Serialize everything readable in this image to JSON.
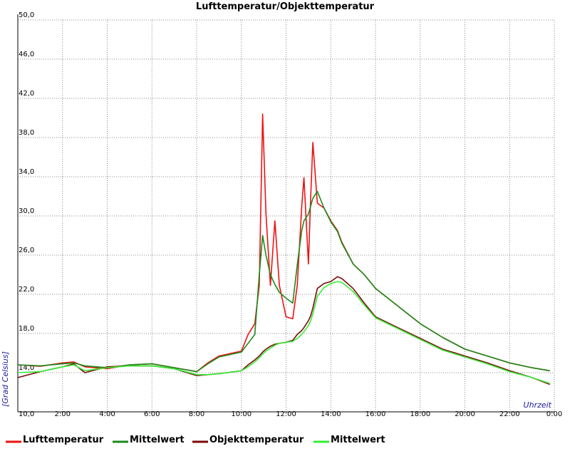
{
  "chart_data": {
    "type": "line",
    "title": "Lufttemperatur/Objekttemperatur",
    "y_label": "[Grad Celsius]",
    "x_label": "Uhrzeit",
    "x": [
      0,
      1,
      2,
      2.5,
      3,
      4,
      5,
      6,
      7,
      8,
      8.5,
      9,
      10,
      10.3,
      10.6,
      10.8,
      10.95,
      11.1,
      11.3,
      11.5,
      11.7,
      12,
      12.3,
      12.5,
      12.7,
      12.8,
      13,
      13.1,
      13.2,
      13.4,
      13.7,
      14,
      14.3,
      14.5,
      15,
      15.5,
      16,
      17,
      18,
      19,
      20,
      21,
      22,
      23,
      23.8
    ],
    "series": [
      {
        "name": "Lufttemperatur",
        "color": "#ee1111",
        "values": [
          14.8,
          14.65,
          15,
          15.1,
          14.6,
          14.4,
          14.8,
          14.9,
          14.5,
          14.1,
          15,
          15.7,
          16.2,
          17.9,
          19,
          22.9,
          40.4,
          30.2,
          22.9,
          29.5,
          22.9,
          19.7,
          19.5,
          22.9,
          31,
          33.9,
          25.1,
          31.8,
          37.5,
          31.3,
          30.8,
          29.5,
          28.5,
          27.3,
          25.1,
          24,
          22.6,
          20.8,
          19,
          17.6,
          16.4,
          15.7,
          15,
          14.5,
          14.2
        ]
      },
      {
        "name": "Mittelwert",
        "color": "#1a8a1a",
        "values": [
          14.8,
          14.7,
          14.9,
          15,
          14.7,
          14.5,
          14.8,
          14.9,
          14.5,
          14.1,
          14.9,
          15.6,
          16.1,
          17,
          17.9,
          24,
          28,
          26,
          24,
          23,
          22.2,
          21.6,
          21.1,
          25,
          28.5,
          29.5,
          30.2,
          31,
          31.8,
          32.5,
          30.8,
          29.4,
          28.4,
          27.2,
          25.1,
          24,
          22.6,
          20.8,
          19,
          17.6,
          16.4,
          15.7,
          15,
          14.5,
          14.2
        ]
      },
      {
        "name": "Objekttemperatur",
        "color": "#7a0a0a",
        "values": [
          13.5,
          14.1,
          14.6,
          14.9,
          14,
          14.6,
          14.7,
          14.7,
          14.4,
          13.7,
          13.8,
          13.9,
          14.2,
          14.8,
          15.3,
          15.7,
          16.1,
          16.4,
          16.7,
          16.9,
          17,
          17.1,
          17.3,
          17.9,
          18.3,
          18.6,
          19.3,
          19.8,
          20.6,
          22.6,
          23.1,
          23.3,
          23.8,
          23.6,
          22.6,
          21.1,
          19.7,
          18.6,
          17.5,
          16.4,
          15.7,
          15,
          14.2,
          13.5,
          12.8
        ]
      },
      {
        "name": "Mittelwert",
        "color": "#33ee33",
        "values": [
          14,
          14.1,
          14.6,
          14.8,
          14.2,
          14.5,
          14.7,
          14.7,
          14.4,
          13.8,
          13.8,
          13.9,
          14.2,
          14.6,
          15.1,
          15.5,
          15.9,
          16.2,
          16.5,
          16.8,
          17,
          17.1,
          17.2,
          17.5,
          17.9,
          18.2,
          18.8,
          19.3,
          20,
          21.8,
          22.7,
          23.1,
          23.3,
          23.2,
          22.3,
          20.9,
          19.6,
          18.5,
          17.4,
          16.3,
          15.6,
          14.9,
          14.1,
          13.5,
          12.9
        ]
      }
    ],
    "xlim": [
      0,
      24
    ],
    "xticks": [
      {
        "value": 2,
        "label": "2:00"
      },
      {
        "value": 4,
        "label": "4:00"
      },
      {
        "value": 6,
        "label": "6:00"
      },
      {
        "value": 8,
        "label": "8:00"
      },
      {
        "value": 10,
        "label": "10:00"
      },
      {
        "value": 12,
        "label": "12:00"
      },
      {
        "value": 14,
        "label": "14:00"
      },
      {
        "value": 16,
        "label": "16:00"
      },
      {
        "value": 18,
        "label": "18:00"
      },
      {
        "value": 20,
        "label": "20:00"
      },
      {
        "value": 22,
        "label": "22:00"
      },
      {
        "value": 24,
        "label": "0:00"
      }
    ],
    "ylim": [
      10,
      50
    ],
    "yticks": [
      {
        "value": 10,
        "label": "10,0"
      },
      {
        "value": 14,
        "label": "14,0"
      },
      {
        "value": 18,
        "label": "18,0"
      },
      {
        "value": 22,
        "label": "22,0"
      },
      {
        "value": 26,
        "label": "26,0"
      },
      {
        "value": 30,
        "label": "30,0"
      },
      {
        "value": 34,
        "label": "34,0"
      },
      {
        "value": 38,
        "label": "38,0"
      },
      {
        "value": 42,
        "label": "42,0"
      },
      {
        "value": 46,
        "label": "46,0"
      },
      {
        "value": 50,
        "label": "50,0"
      }
    ],
    "grid": true
  }
}
